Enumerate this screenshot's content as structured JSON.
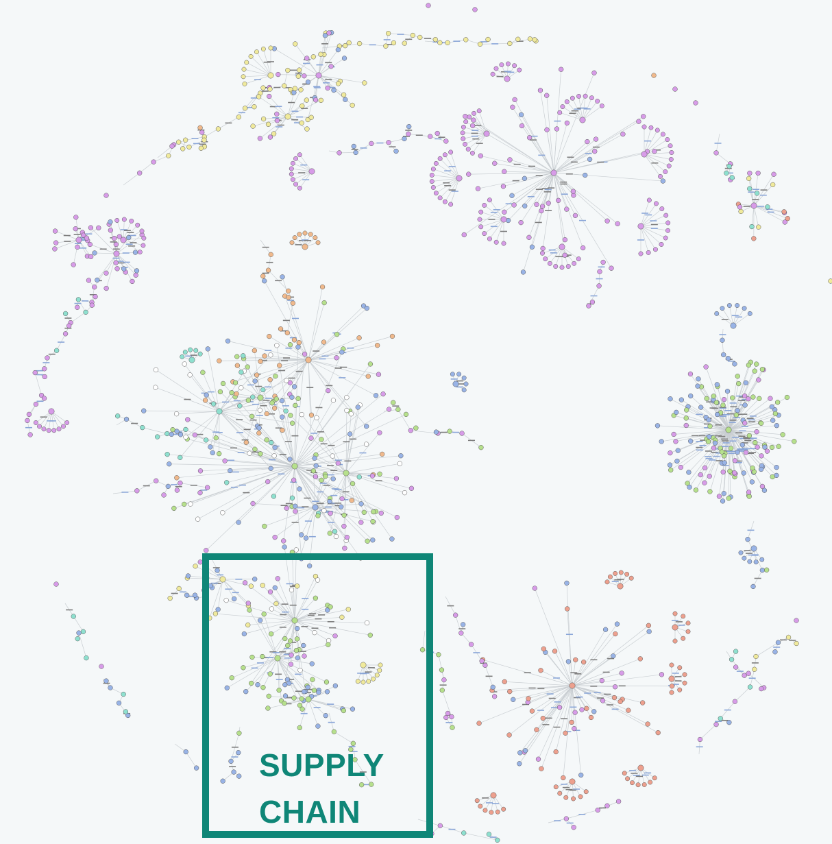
{
  "highlight": {
    "label_line1": "SUPPLY",
    "label_line2": "CHAIN",
    "color": "#0f8677"
  },
  "graph": {
    "edge_color": "#c9ced2",
    "node_palette": {
      "purple": "#d79be8",
      "yellow": "#f0ea9c",
      "orange": "#f0b98c",
      "green": "#b6e08c",
      "blue": "#98b3e6",
      "teal": "#8ee0cf",
      "salmon": "#eda08e",
      "white": "#ffffff"
    }
  }
}
